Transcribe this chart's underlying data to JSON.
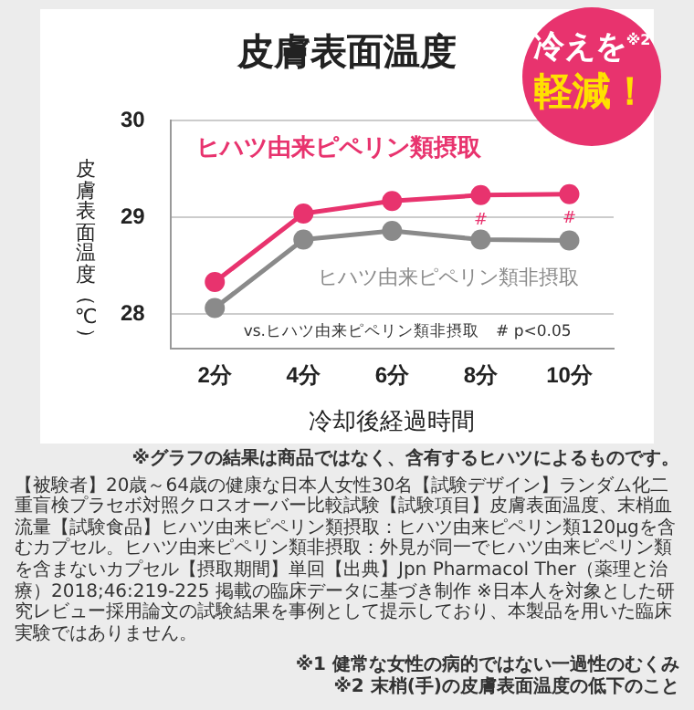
{
  "chart_data": {
    "type": "line",
    "title": "皮膚表面温度",
    "xlabel": "冷却後経過時間",
    "ylabel": "皮膚表面温度（℃）",
    "categories": [
      "2分",
      "4分",
      "6分",
      "8分",
      "10分"
    ],
    "series": [
      {
        "name": "ヒハツ由来ピペリン類摂取",
        "color": "#e8336e",
        "values": [
          28.33,
          29.04,
          29.17,
          29.23,
          29.24
        ]
      },
      {
        "name": "ヒハツ由来ピペリン類非摂取",
        "color": "#8a8a8a",
        "values": [
          28.06,
          28.77,
          28.86,
          28.77,
          28.76
        ]
      }
    ],
    "ylim": [
      27.64,
      30
    ],
    "yticks": [
      28,
      29,
      30
    ],
    "grid": "y",
    "legend": false,
    "marker": "circle",
    "line_style": "solid",
    "annotations": [
      "冷えを$^{※2}$\n軽減！",
      {
        "text": "#",
        "x": "8分",
        "y": 29.23
      },
      {
        "text": "#",
        "x": "10分",
        "y": 29.24
      },
      "vs.ヒハツ由来ピペリン類非摂取　# p<0.05",
      "※グラフの結果は商品ではなく、含有するヒハツによるものです。",
      "【被験者】20歳～64歳の健康な日本人女性30名【試験デザイン】ランダム化二重盲検プラセボ対照クロスオーバー比較試験【試験項目】皮膚表面温度、末梢血流量【試験食品】ヒハツ由来ピペリン類摂取：ヒハツ由来ピペリン類120μgを含むカプセル。ヒハツ由来ピペリン類非摂取：外見が同一でヒハツ由来ピペリン類を含まないカプセル【摂取期間】単回【出典】Jpn Pharmacol Ther（薬理と治療）2018;46:219-225 掲載の臨床データに基づき制作 ※日本人を対象とした研究レビュー採用論文の試験結果を事例として提示しており、本製品を用いた臨床実験ではありません。",
      "※1 健常な女性の病的ではない一過性のむくみ",
      "※2 末梢(手)の皮膚表面温度の低下のこと"
    ]
  }
}
